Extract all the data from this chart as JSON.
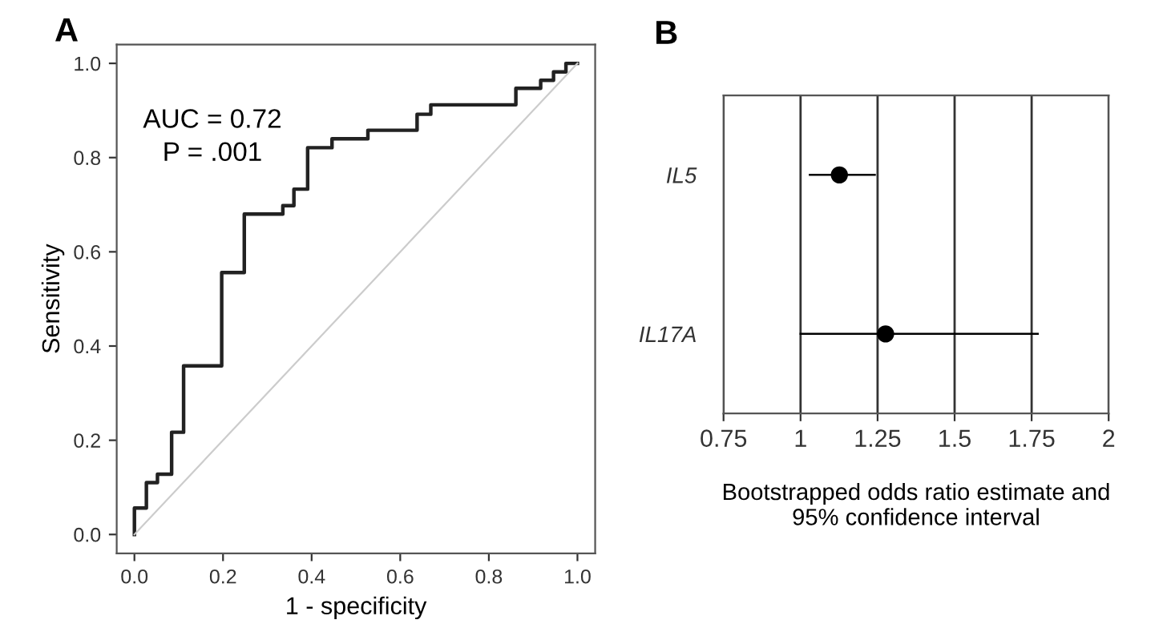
{
  "chart_data": [
    {
      "type": "step",
      "title": "A",
      "xlabel": "1 - specificity",
      "ylabel": "Sensitivity",
      "series": [
        {
          "color": "#222222",
          "x": [
            0,
            0,
            0.027,
            0.052,
            0.084,
            0.111,
            0.197,
            0.248,
            0.335,
            0.36,
            0.391,
            0.446,
            0.527,
            0.638,
            0.669,
            0.861,
            0.917,
            0.946,
            0.974,
            1.0
          ],
          "values": [
            0,
            0.056,
            0.11,
            0.128,
            0.217,
            0.358,
            0.556,
            0.68,
            0.698,
            0.733,
            0.821,
            0.84,
            0.858,
            0.892,
            0.912,
            0.947,
            0.964,
            0.982,
            1.0,
            1.0
          ]
        },
        {
          "type": "line",
          "color": "#cccccc",
          "x": [
            0,
            1
          ],
          "values": [
            0,
            1
          ]
        }
      ],
      "xlim": [
        -0.04,
        1.04
      ],
      "ylim": [
        -0.04,
        1.04
      ],
      "xticks": [
        {
          "value": 0,
          "label": "0.0"
        },
        {
          "value": 0.2,
          "label": "0.2"
        },
        {
          "value": 0.4,
          "label": "0.4"
        },
        {
          "value": 0.6,
          "label": "0.6"
        },
        {
          "value": 0.8,
          "label": "0.8"
        },
        {
          "value": 1,
          "label": "1.0"
        }
      ],
      "yticks": [
        {
          "value": 0,
          "label": "0.0"
        },
        {
          "value": 0.2,
          "label": "0.2"
        },
        {
          "value": 0.4,
          "label": "0.4"
        },
        {
          "value": 0.6,
          "label": "0.6"
        },
        {
          "value": 0.8,
          "label": "0.8"
        },
        {
          "value": 1,
          "label": "1.0"
        }
      ],
      "annotations": [
        "AUC = 0.72",
        "P = .001"
      ],
      "grid": false,
      "legend": false
    },
    {
      "type": "scatter",
      "title": "B",
      "orientation": "horizontal",
      "xlabel": "Bootstrapped odds ratio estimate and\n95% confidence interval",
      "categories": [
        "IL5",
        "IL17A"
      ],
      "series": [
        {
          "color": "#000000",
          "values": [
            1.126,
            1.276
          ],
          "errors": [
            [
              1.03,
              1.241
            ],
            [
              1.0,
              1.77
            ]
          ]
        }
      ],
      "xlim": [
        0.75,
        2
      ],
      "xticks": [
        0.75,
        1,
        1.25,
        1.5,
        1.75,
        2
      ],
      "grid": "x",
      "marker": "circle",
      "legend": false
    }
  ]
}
